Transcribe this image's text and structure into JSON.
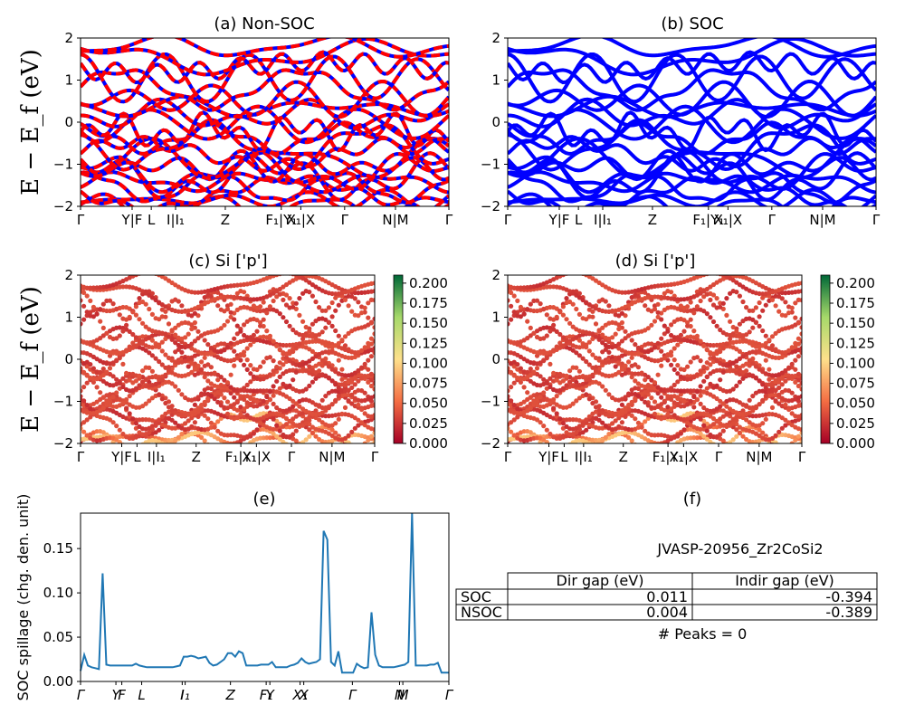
{
  "kpath_ticks": [
    "Γ",
    "Y|F",
    "L",
    "I|I1",
    "Z",
    "F1|Y1",
    "X1|X",
    "Γ",
    "N|M",
    "Γ"
  ],
  "colors": {
    "non_soc": "#ff0000",
    "soc": "#0000ff",
    "spillage": "#1f77b4"
  },
  "chart_data": [
    {
      "id": "a",
      "type": "line",
      "title": "(a) Non-SOC",
      "ylabel": "E − E_f (eV)",
      "ylim": [
        -2,
        2
      ],
      "yticks": [
        "2",
        "1",
        "0",
        "−1",
        "−2"
      ],
      "xtick_labels": [
        "Γ",
        "Y|F",
        "L",
        "I|I₁",
        "Z",
        "F₁|Y₁",
        "X₁|X",
        "Γ",
        "N|M",
        "Γ"
      ],
      "style": "red-blue-dashed"
    },
    {
      "id": "b",
      "type": "line",
      "title": "(b) SOC",
      "ylim": [
        -2,
        2
      ],
      "yticks": [
        "2",
        "1",
        "0",
        "−1",
        "−2"
      ],
      "xtick_labels": [
        "Γ",
        "Y|F",
        "L",
        "I|I₁",
        "Z",
        "F₁|Y₁",
        "X₁|X",
        "Γ",
        "N|M",
        "Γ"
      ],
      "style": "blue"
    },
    {
      "id": "c",
      "type": "scatter",
      "title": "(c)  Si ['p']",
      "ylabel": "E − E_f (eV)",
      "ylim": [
        -2,
        2
      ],
      "yticks": [
        "2",
        "1",
        "0",
        "−1",
        "−2"
      ],
      "xtick_labels": [
        "Γ",
        "Y|F",
        "L",
        "I|I₁",
        "Z",
        "F₁|Y₁",
        "X₁|X",
        "Γ",
        "N|M",
        "Γ"
      ],
      "colorbar": {
        "min": 0.0,
        "max": 0.21,
        "colormap": "RdYlGn",
        "ticks": [
          "0.200",
          "0.175",
          "0.150",
          "0.125",
          "0.100",
          "0.075",
          "0.050",
          "0.025",
          "0.000"
        ]
      }
    },
    {
      "id": "d",
      "type": "scatter",
      "title": "(d) Si ['p']",
      "ylim": [
        -2,
        2
      ],
      "yticks": [
        "2",
        "1",
        "0",
        "−1",
        "−2"
      ],
      "xtick_labels": [
        "Γ",
        "Y|F",
        "L",
        "I|I₁",
        "Z",
        "F₁|Y₁",
        "X₁|X",
        "Γ",
        "N|M",
        "Γ"
      ],
      "colorbar": {
        "min": 0.0,
        "max": 0.21,
        "colormap": "RdYlGn",
        "ticks": [
          "0.200",
          "0.175",
          "0.150",
          "0.125",
          "0.100",
          "0.075",
          "0.050",
          "0.025",
          "0.000"
        ]
      }
    },
    {
      "id": "e",
      "type": "line",
      "title": "(e)",
      "ylabel": "SOC spillage (chg. den. unit)",
      "ylim": [
        0,
        0.19
      ],
      "yticks": [
        "0.15",
        "0.10",
        "0.05",
        "0.00"
      ],
      "xtick_labels": [
        "Γ",
        "Y",
        "F",
        "L",
        "I",
        "I₁",
        "Z",
        "F₁",
        "Y",
        "X₁",
        "X",
        "Γ",
        "N",
        "M",
        "Γ"
      ],
      "x": [
        0,
        1,
        2,
        3,
        4,
        5,
        6,
        7,
        8,
        9,
        10,
        11,
        12,
        13,
        14,
        15,
        16,
        17,
        18,
        19,
        20,
        21,
        22,
        23,
        24,
        25,
        26,
        27,
        28,
        29,
        30,
        31,
        32,
        33,
        34,
        35,
        36,
        37,
        38,
        39,
        40,
        41,
        42,
        43,
        44,
        45,
        46,
        47,
        48,
        49,
        50,
        51,
        52,
        53,
        54,
        55,
        56,
        57,
        58,
        59,
        60,
        61,
        62,
        63,
        64,
        65,
        66,
        67,
        68,
        69,
        70,
        71,
        72,
        73,
        74,
        75,
        76,
        77,
        78,
        79,
        80,
        81,
        82,
        83,
        84,
        85,
        86,
        87,
        88,
        89,
        90,
        91,
        92,
        93,
        94,
        95,
        96,
        97,
        98,
        99,
        100
      ],
      "values": [
        0.012,
        0.03,
        0.018,
        0.016,
        0.015,
        0.014,
        0.122,
        0.019,
        0.018,
        0.018,
        0.018,
        0.018,
        0.018,
        0.018,
        0.018,
        0.02,
        0.018,
        0.017,
        0.016,
        0.016,
        0.016,
        0.016,
        0.016,
        0.016,
        0.016,
        0.016,
        0.017,
        0.018,
        0.028,
        0.028,
        0.029,
        0.028,
        0.026,
        0.027,
        0.028,
        0.021,
        0.018,
        0.019,
        0.022,
        0.025,
        0.032,
        0.032,
        0.028,
        0.034,
        0.032,
        0.018,
        0.018,
        0.018,
        0.018,
        0.019,
        0.019,
        0.019,
        0.022,
        0.016,
        0.016,
        0.016,
        0.016,
        0.018,
        0.019,
        0.021,
        0.026,
        0.022,
        0.02,
        0.021,
        0.022,
        0.025,
        0.17,
        0.16,
        0.022,
        0.018,
        0.034,
        0.01,
        0.01,
        0.01,
        0.01,
        0.02,
        0.017,
        0.015,
        0.016,
        0.078,
        0.03,
        0.018,
        0.016,
        0.016,
        0.016,
        0.016,
        0.017,
        0.018,
        0.019,
        0.022,
        0.19,
        0.018,
        0.018,
        0.018,
        0.018,
        0.019,
        0.019,
        0.021,
        0.01,
        0.01,
        0.01
      ]
    }
  ],
  "table": {
    "title": "(f)",
    "material": "JVASP-20956_Zr2CoSi2",
    "headers": [
      "",
      "Dir gap (eV)",
      "Indir gap (eV)"
    ],
    "rows": [
      [
        "SOC",
        "0.011",
        "-0.394"
      ],
      [
        "NSOC",
        "0.004",
        "-0.389"
      ]
    ],
    "peaks": "# Peaks = 0"
  }
}
